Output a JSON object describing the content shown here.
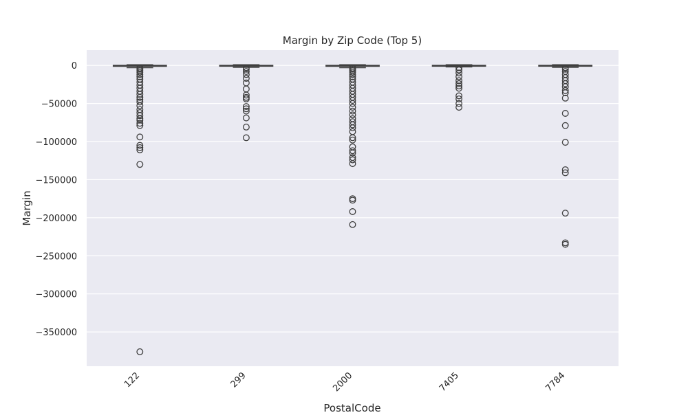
{
  "chart_data": {
    "type": "box",
    "title": "Margin by Zip Code (Top 5)",
    "xlabel": "PostalCode",
    "ylabel": "Margin",
    "categories": [
      "122",
      "299",
      "2000",
      "7405",
      "7784"
    ],
    "yticks": [
      0,
      -50000,
      -100000,
      -150000,
      -200000,
      -250000,
      -300000,
      -350000
    ],
    "ytick_labels": [
      "0",
      "−50000",
      "−100000",
      "−150000",
      "−200000",
      "−250000",
      "−300000",
      "−350000"
    ],
    "ylim": [
      -395000,
      20000
    ],
    "grid": true,
    "background": "#eaeaf2",
    "box_color": "#3f3f3f",
    "boxes": [
      {
        "category": "122",
        "q1": -1200,
        "median": -200,
        "q3": 0,
        "whisker_low": -3000,
        "whisker_high": 800,
        "outliers": [
          -3500,
          -5000,
          -7000,
          -9000,
          -12000,
          -15000,
          -18000,
          -22000,
          -26000,
          -30000,
          -34000,
          -38000,
          -42000,
          -45000,
          -48000,
          -53000,
          -58000,
          -62000,
          -66000,
          -70000,
          -72000,
          -76000,
          -79000,
          -94000,
          -105000,
          -108000,
          -111000,
          -130000,
          -376000
        ]
      },
      {
        "category": "299",
        "q1": -1000,
        "median": -200,
        "q3": 0,
        "whisker_low": -2500,
        "whisker_high": 800,
        "outliers": [
          -3000,
          -5000,
          -8000,
          -12000,
          -17000,
          -23000,
          -31000,
          -39000,
          -42000,
          -44000,
          -54000,
          -57000,
          -60000,
          -69000,
          -81000,
          -95000
        ]
      },
      {
        "category": "2000",
        "q1": -1200,
        "median": -200,
        "q3": 0,
        "whisker_low": -3000,
        "whisker_high": 800,
        "outliers": [
          -3500,
          -5000,
          -7000,
          -9000,
          -12000,
          -15000,
          -18000,
          -22000,
          -26000,
          -30000,
          -34000,
          -38000,
          -42000,
          -46000,
          -50000,
          -55000,
          -60000,
          -65000,
          -70000,
          -74000,
          -78000,
          -82000,
          -87000,
          -95000,
          -98000,
          -107000,
          -112000,
          -115000,
          -121000,
          -124000,
          -129000,
          -175000,
          -177000,
          -192000,
          -209000
        ]
      },
      {
        "category": "7405",
        "q1": -800,
        "median": -200,
        "q3": 0,
        "whisker_low": -2000,
        "whisker_high": 800,
        "outliers": [
          -3000,
          -6000,
          -10000,
          -15000,
          -20000,
          -24000,
          -27000,
          -30000,
          -40000,
          -44000,
          -50000,
          -55000
        ]
      },
      {
        "category": "7784",
        "q1": -1000,
        "median": -200,
        "q3": 0,
        "whisker_low": -2500,
        "whisker_high": 800,
        "outliers": [
          -3000,
          -5000,
          -8000,
          -12000,
          -16000,
          -20000,
          -24000,
          -28000,
          -33000,
          -36000,
          -43000,
          -63000,
          -79000,
          -101000,
          -137000,
          -141000,
          -194000,
          -233000,
          -235000
        ]
      }
    ]
  }
}
